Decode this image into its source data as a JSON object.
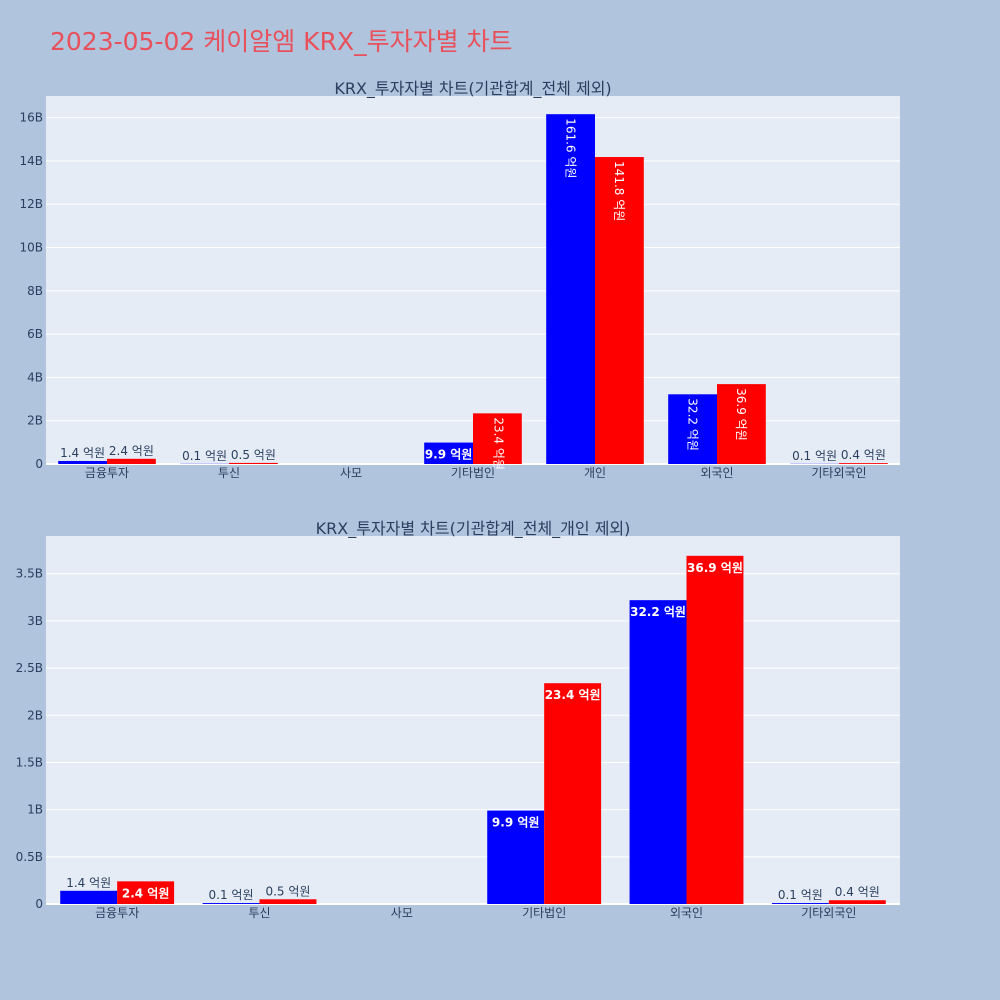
{
  "title": "2023-05-02 케이알엠 KRX_투자자별 차트",
  "colors": {
    "buy": "#0000ff",
    "sell": "#ff0000",
    "plot_bg": "#e5ecf6",
    "page_bg": "#b0c4de",
    "title": "#e8505b"
  },
  "chart_data": [
    {
      "type": "bar",
      "title": "KRX_투자자별 차트(기관합계_전체 제외)",
      "categories": [
        "금융투자",
        "투신",
        "사모",
        "기타법인",
        "개인",
        "외국인",
        "기타외국인"
      ],
      "ylim": [
        0,
        17000000000
      ],
      "yticks": [
        0,
        2000000000,
        4000000000,
        6000000000,
        8000000000,
        10000000000,
        12000000000,
        14000000000,
        16000000000
      ],
      "ytick_labels": [
        "0",
        "2B",
        "4B",
        "6B",
        "8B",
        "10B",
        "12B",
        "14B",
        "16B"
      ],
      "grid": true,
      "series": [
        {
          "color": "#0000ff",
          "values": [
            140000000,
            10000000,
            0,
            990000000,
            16160000000,
            3220000000,
            10000000
          ],
          "labels": [
            "1.4 억원",
            "0.1 억원",
            "",
            "9.9 억원",
            "161.6 억원",
            "32.2 억원",
            "0.1 억원"
          ]
        },
        {
          "color": "#ff0000",
          "values": [
            240000000,
            50000000,
            0,
            2340000000,
            14180000000,
            3690000000,
            40000000
          ],
          "labels": [
            "2.4 억원",
            "0.5 억원",
            "",
            "23.4 억원",
            "141.8 억원",
            "36.9 억원",
            "0.4 억원"
          ]
        }
      ]
    },
    {
      "type": "bar",
      "title": "KRX_투자자별 차트(기관합계_전체_개인 제외)",
      "categories": [
        "금융투자",
        "투신",
        "사모",
        "기타법인",
        "외국인",
        "기타외국인"
      ],
      "ylim": [
        0,
        3900000000
      ],
      "yticks": [
        0,
        500000000,
        1000000000,
        1500000000,
        2000000000,
        2500000000,
        3000000000,
        3500000000
      ],
      "ytick_labels": [
        "0",
        "0.5B",
        "1B",
        "1.5B",
        "2B",
        "2.5B",
        "3B",
        "3.5B"
      ],
      "grid": true,
      "series": [
        {
          "color": "#0000ff",
          "values": [
            140000000,
            10000000,
            0,
            990000000,
            3220000000,
            10000000
          ],
          "labels": [
            "1.4 억원",
            "0.1 억원",
            "",
            "9.9 억원",
            "32.2 억원",
            "0.1 억원"
          ]
        },
        {
          "color": "#ff0000",
          "values": [
            240000000,
            50000000,
            0,
            2340000000,
            3690000000,
            40000000
          ],
          "labels": [
            "2.4 억원",
            "0.5 억원",
            "",
            "23.4 억원",
            "36.9 억원",
            "0.4 억원"
          ]
        }
      ]
    }
  ]
}
